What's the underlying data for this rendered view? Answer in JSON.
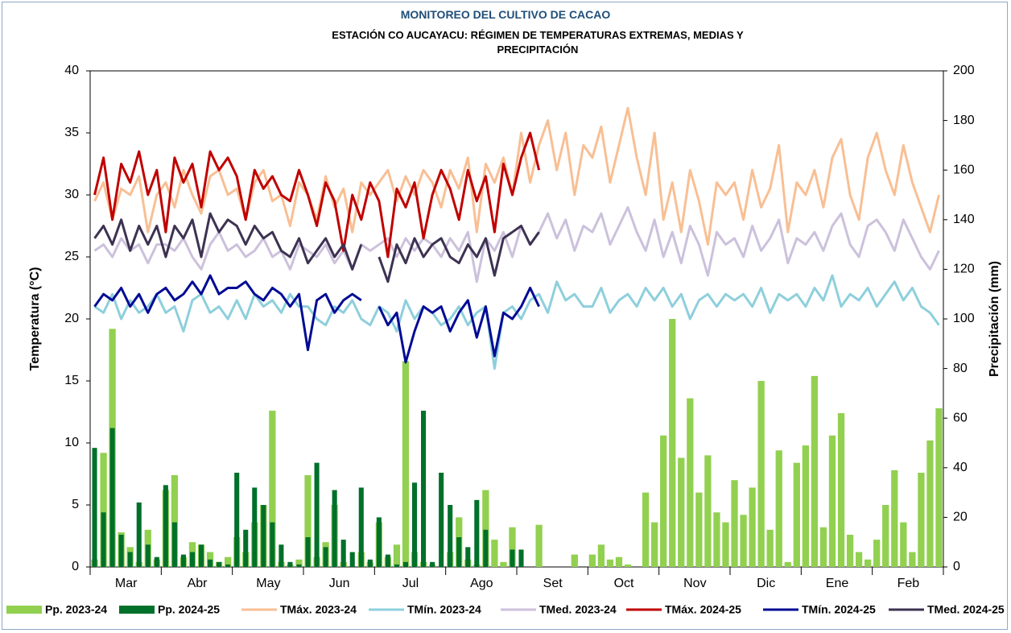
{
  "chart_data": {
    "type": "combo",
    "title": "MONITOREO DEL CULTIVO DE CACAO",
    "subtitle": "ESTACIÓN  CO AUCAYACU: RÉGIMEN DE TEMPERATURAS EXTREMAS, MEDIAS Y PRECIPITACIÓN",
    "y_label": "Temperatura (°C)",
    "y2_label": "Precipitación (mm)",
    "ylim": [
      0,
      40
    ],
    "yticks": [
      0,
      5,
      10,
      15,
      20,
      25,
      30,
      35,
      40
    ],
    "y2lim": [
      0,
      200
    ],
    "y2ticks": [
      0,
      20,
      40,
      60,
      80,
      100,
      120,
      140,
      160,
      180,
      200
    ],
    "legend": "bottom",
    "categories": [
      null,
      null,
      null,
      null,
      "Mar",
      null,
      null,
      null,
      null,
      null,
      null,
      null,
      "Abr",
      null,
      null,
      null,
      null,
      null,
      null,
      null,
      "May",
      null,
      null,
      null,
      null,
      null,
      null,
      null,
      "Jun",
      null,
      null,
      null,
      null,
      null,
      null,
      null,
      "Jul",
      null,
      null,
      null,
      null,
      null,
      null,
      null,
      "Ago",
      null,
      null,
      null,
      null,
      null,
      null,
      null,
      "Set",
      null,
      null,
      null,
      null,
      null,
      null,
      null,
      "Oct",
      null,
      null,
      null,
      null,
      null,
      null,
      null,
      "Nov",
      null,
      null,
      null,
      null,
      null,
      null,
      null,
      "Dic",
      null,
      null,
      null,
      null,
      null,
      null,
      null,
      "Ene",
      null,
      null,
      null,
      null,
      null,
      null,
      null,
      "Feb",
      null,
      null,
      null
    ],
    "series": [
      {
        "name": "Pp. 2023-24",
        "type": "bar",
        "axis": "y2",
        "color": "#92d050",
        "values": [
          3,
          46,
          96,
          14,
          8,
          2,
          15,
          3,
          31,
          37,
          4,
          10,
          9,
          6,
          2,
          4,
          12,
          6,
          18,
          25,
          63,
          2,
          1,
          3,
          37,
          4,
          10,
          25,
          2,
          0,
          6,
          2,
          18,
          4,
          9,
          83,
          6,
          2,
          1,
          0,
          6,
          20,
          3,
          1,
          31,
          11,
          2,
          16,
          0,
          0,
          17,
          0,
          0,
          0,
          5,
          0,
          5,
          9,
          3,
          4,
          1,
          0,
          30,
          18,
          53,
          100,
          44,
          68,
          30,
          45,
          22,
          18,
          35,
          21,
          32,
          75,
          15,
          47,
          2,
          42,
          49,
          77,
          16,
          53,
          62,
          13,
          6,
          3,
          11,
          25,
          39,
          18,
          6,
          38,
          51,
          64
        ]
      },
      {
        "name": "Pp. 2024-25",
        "type": "bar",
        "axis": "y2",
        "color": "#00702a",
        "values": [
          48,
          22,
          56,
          13,
          6,
          26,
          9,
          4,
          33,
          18,
          5,
          6,
          9,
          3,
          2,
          1,
          38,
          15,
          32,
          25,
          18,
          9,
          2,
          1,
          12,
          42,
          8,
          31,
          11,
          6,
          32,
          3,
          20,
          5,
          1,
          2,
          34,
          63,
          2,
          38,
          25,
          12,
          8,
          27,
          15,
          0,
          0,
          7,
          7,
          0,
          null,
          null,
          null,
          null,
          null,
          null,
          null,
          null,
          null,
          null,
          null,
          null,
          null,
          null,
          null,
          null,
          null,
          null,
          null,
          null,
          null,
          null,
          null,
          null,
          null,
          null,
          null,
          null,
          null,
          null,
          null,
          null,
          null,
          null,
          null,
          null,
          null,
          null,
          null,
          null,
          null,
          null,
          null,
          null,
          null,
          null
        ]
      },
      {
        "name": "TMáx. 2023-24",
        "type": "line",
        "color": "#f8bf94",
        "values": [
          29.5,
          31,
          28,
          30.5,
          30,
          31.5,
          27,
          30,
          31,
          29,
          32,
          30,
          28.5,
          31.5,
          32,
          30,
          30.5,
          28,
          31,
          32,
          29.5,
          30,
          27.5,
          31,
          30,
          28,
          31.5,
          29,
          30.5,
          27,
          31,
          30,
          31,
          32,
          29.5,
          31.5,
          30,
          32,
          31,
          29,
          32,
          30.5,
          33,
          27,
          32.5,
          31,
          33,
          30,
          35,
          31,
          34,
          36,
          32,
          35,
          30,
          34,
          33,
          35.5,
          31,
          34,
          37,
          33,
          30,
          35,
          28,
          31,
          27,
          32,
          29.5,
          26,
          31,
          30,
          31,
          28,
          32,
          29,
          30.5,
          34,
          27,
          31,
          30,
          32,
          29,
          33,
          34.5,
          30,
          28,
          33,
          35,
          32,
          30,
          34,
          31,
          29,
          27,
          30
        ]
      },
      {
        "name": "TMín. 2023-24",
        "type": "line",
        "color": "#8ecfdc",
        "values": [
          21,
          20.5,
          22,
          20,
          21.5,
          20.5,
          21,
          22,
          20.5,
          21,
          19,
          21.5,
          22,
          20.5,
          21,
          20,
          21.5,
          20,
          22,
          21,
          21.5,
          20.5,
          22,
          21,
          21,
          20,
          19.5,
          21,
          20.5,
          21.5,
          20,
          19.5,
          21,
          20.5,
          19,
          21.5,
          20,
          21,
          20.5,
          19.5,
          20,
          21,
          19.5,
          20.5,
          21,
          16,
          20.5,
          21,
          20,
          21.5,
          22,
          20.5,
          23,
          21.5,
          22,
          21,
          21,
          22.5,
          20.5,
          21.5,
          22,
          21,
          22.5,
          21.5,
          22.5,
          21,
          22,
          20,
          21.5,
          22,
          21,
          22,
          21.5,
          22,
          21,
          22.5,
          20.5,
          22,
          21.5,
          22,
          21,
          22.5,
          21.5,
          23.5,
          21,
          22,
          21.5,
          22.5,
          21,
          22,
          23,
          21.5,
          22.5,
          21,
          20.5,
          19.5
        ]
      },
      {
        "name": "TMed. 2023-24",
        "type": "line",
        "color": "#ccc1dc",
        "values": [
          25.5,
          26,
          25,
          26.5,
          25.5,
          26,
          24.5,
          26,
          26,
          25.5,
          26.5,
          25,
          24,
          26,
          27,
          25.5,
          26,
          25,
          25.5,
          26.5,
          25,
          25.5,
          24,
          26,
          25.5,
          25,
          26,
          24.5,
          25.5,
          24,
          26,
          25.5,
          26,
          26.5,
          25,
          26.5,
          25.5,
          26.5,
          26,
          25,
          26.5,
          25.5,
          27,
          23,
          26.5,
          25.5,
          27,
          25,
          27.5,
          26,
          27,
          28.5,
          26.5,
          28,
          25.5,
          27.5,
          27,
          28.5,
          26,
          27.5,
          29,
          27,
          25.5,
          28,
          25,
          27,
          24.5,
          27.5,
          26,
          23.5,
          27,
          26,
          26.5,
          25,
          27.5,
          25.5,
          26.5,
          28,
          24.5,
          26.5,
          26,
          27,
          25.5,
          27.5,
          28.5,
          26,
          25,
          27.5,
          28,
          27,
          25.5,
          28,
          26.5,
          25,
          24,
          25.5
        ]
      },
      {
        "name": "TMáx. 2024-25",
        "type": "line",
        "color": "#c00000",
        "values": [
          30,
          33,
          28,
          32.5,
          31,
          33.5,
          30,
          32,
          27,
          33,
          31,
          32.5,
          29,
          33.5,
          32,
          33,
          31.5,
          28,
          32,
          30.5,
          31.5,
          30,
          29.5,
          32,
          30,
          27.5,
          31,
          29.5,
          25.5,
          30,
          28,
          31,
          29.5,
          25,
          30.5,
          29,
          31,
          26.5,
          30,
          32,
          30.5,
          28,
          32,
          29.5,
          31.5,
          27,
          32.5,
          30,
          33,
          35,
          32,
          null,
          null,
          null,
          null,
          null,
          null,
          null,
          null,
          null,
          null,
          null,
          null,
          null,
          null,
          null,
          null,
          null,
          null,
          null,
          null,
          null,
          null,
          null,
          null,
          null,
          null,
          null,
          null,
          null,
          null,
          null,
          null,
          null,
          null,
          null,
          null,
          null,
          null,
          null,
          null,
          null,
          null,
          null,
          null,
          null
        ]
      },
      {
        "name": "TMín. 2024-25",
        "type": "line",
        "color": "#000b94",
        "values": [
          21,
          22,
          21.5,
          22.5,
          21,
          22,
          20.5,
          22,
          22.5,
          21.5,
          22,
          23,
          22,
          23.5,
          22,
          22.5,
          22.5,
          23,
          22,
          21.5,
          22.5,
          22,
          21,
          22,
          17.5,
          21.5,
          22,
          20.5,
          21.5,
          22,
          21.5,
          null,
          21,
          19.5,
          20.5,
          16.5,
          19,
          21,
          20.5,
          21,
          19,
          20.5,
          21.5,
          18.5,
          21,
          17,
          20.5,
          20,
          21,
          22.5,
          21,
          null,
          null,
          null,
          null,
          null,
          null,
          null,
          null,
          null,
          null,
          null,
          null,
          null,
          null,
          null,
          null,
          null,
          null,
          null,
          null,
          null,
          null,
          null,
          null,
          null,
          null,
          null,
          null,
          null,
          null,
          null,
          null,
          null,
          null,
          null,
          null,
          null,
          null,
          null,
          null,
          null,
          null,
          null,
          null,
          null
        ]
      },
      {
        "name": "TMed. 2024-25",
        "type": "line",
        "color": "#3d3252",
        "values": [
          26.5,
          27.5,
          26,
          28,
          25.5,
          27.5,
          26,
          27.5,
          25,
          27.5,
          26.5,
          28,
          25,
          28.5,
          27,
          28,
          27.5,
          26,
          27.5,
          26.5,
          27,
          25.5,
          25,
          26.5,
          24.5,
          25.5,
          26.5,
          25,
          26,
          24,
          26,
          null,
          25,
          23,
          26,
          24.5,
          26.5,
          25,
          26,
          26.5,
          25,
          24.5,
          26,
          25,
          26.5,
          23.5,
          26.5,
          27,
          27.5,
          26,
          27,
          null,
          null,
          null,
          null,
          null,
          null,
          null,
          null,
          null,
          null,
          null,
          null,
          null,
          null,
          null,
          null,
          null,
          null,
          null,
          null,
          null,
          null,
          null,
          null,
          null,
          null,
          null,
          null,
          null,
          null,
          null,
          null,
          null,
          null,
          null,
          null,
          null,
          null,
          null,
          null,
          null,
          null,
          null,
          null,
          null
        ]
      }
    ]
  }
}
